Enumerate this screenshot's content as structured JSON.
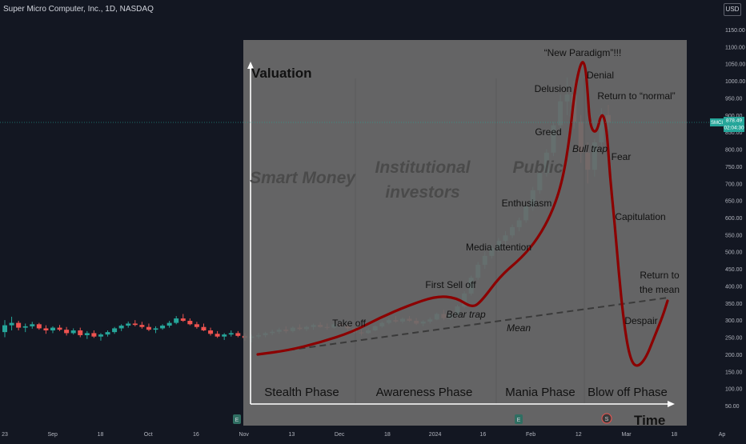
{
  "header": {
    "title": "Super Micro Computer, Inc., 1D, NASDAQ",
    "currency": "USD"
  },
  "price_tag": {
    "symbol": "SMCI",
    "price": "878.49",
    "timer": "02:04:30"
  },
  "chart_data": {
    "type": "candlestick",
    "x_ticks": [
      "23",
      "Sep",
      "18",
      "Oct",
      "16",
      "Nov",
      "13",
      "Dec",
      "18",
      "2024",
      "16",
      "Feb",
      "12",
      "Mar",
      "18",
      "Ap"
    ],
    "y_ticks": [
      1150,
      1100,
      1050,
      1000,
      950,
      900,
      850,
      800,
      750,
      700,
      650,
      600,
      550,
      500,
      450,
      400,
      350,
      300,
      250,
      200,
      150,
      100,
      50
    ],
    "ylim": [
      50,
      1150
    ],
    "last_price": 878.49,
    "candles": [
      [
        265,
        300,
        250,
        285
      ],
      [
        285,
        310,
        270,
        292
      ],
      [
        292,
        298,
        270,
        278
      ],
      [
        278,
        290,
        265,
        282
      ],
      [
        282,
        295,
        275,
        288
      ],
      [
        288,
        292,
        272,
        276
      ],
      [
        276,
        285,
        260,
        270
      ],
      [
        270,
        282,
        262,
        278
      ],
      [
        278,
        286,
        268,
        272
      ],
      [
        272,
        280,
        255,
        262
      ],
      [
        262,
        276,
        258,
        270
      ],
      [
        270,
        278,
        250,
        256
      ],
      [
        256,
        268,
        245,
        262
      ],
      [
        262,
        270,
        248,
        252
      ],
      [
        252,
        262,
        240,
        258
      ],
      [
        258,
        270,
        252,
        265
      ],
      [
        265,
        280,
        260,
        276
      ],
      [
        276,
        288,
        268,
        284
      ],
      [
        284,
        296,
        278,
        290
      ],
      [
        290,
        300,
        282,
        286
      ],
      [
        286,
        295,
        275,
        280
      ],
      [
        280,
        290,
        268,
        272
      ],
      [
        272,
        282,
        262,
        276
      ],
      [
        276,
        288,
        272,
        284
      ],
      [
        284,
        298,
        278,
        292
      ],
      [
        292,
        312,
        288,
        305
      ],
      [
        305,
        318,
        295,
        298
      ],
      [
        298,
        305,
        285,
        288
      ],
      [
        288,
        295,
        275,
        280
      ],
      [
        280,
        290,
        268,
        270
      ],
      [
        270,
        278,
        255,
        260
      ],
      [
        260,
        268,
        248,
        252
      ],
      [
        252,
        262,
        242,
        258
      ],
      [
        258,
        270,
        252,
        262
      ],
      [
        262,
        268,
        250,
        254
      ],
      [
        254,
        262,
        240,
        248
      ],
      [
        248,
        258,
        235,
        252
      ],
      [
        252,
        262,
        246,
        256
      ],
      [
        256,
        266,
        250,
        262
      ],
      [
        262,
        272,
        256,
        266
      ],
      [
        266,
        278,
        260,
        272
      ],
      [
        272,
        282,
        262,
        268
      ],
      [
        268,
        282,
        264,
        278
      ],
      [
        278,
        288,
        270,
        274
      ],
      [
        274,
        284,
        268,
        280
      ],
      [
        280,
        290,
        272,
        286
      ],
      [
        286,
        294,
        278,
        280
      ],
      [
        280,
        290,
        272,
        278
      ],
      [
        278,
        292,
        275,
        288
      ],
      [
        288,
        296,
        280,
        284
      ],
      [
        284,
        290,
        270,
        276
      ],
      [
        276,
        282,
        260,
        264
      ],
      [
        264,
        272,
        255,
        262
      ],
      [
        262,
        275,
        260,
        270
      ],
      [
        270,
        285,
        268,
        282
      ],
      [
        282,
        296,
        278,
        292
      ],
      [
        292,
        305,
        288,
        300
      ],
      [
        300,
        312,
        292,
        296
      ],
      [
        296,
        308,
        290,
        304
      ],
      [
        304,
        312,
        295,
        298
      ],
      [
        298,
        306,
        286,
        290
      ],
      [
        290,
        300,
        282,
        296
      ],
      [
        296,
        308,
        290,
        302
      ],
      [
        302,
        322,
        300,
        318
      ],
      [
        318,
        330,
        300,
        306
      ],
      [
        306,
        320,
        300,
        316
      ],
      [
        316,
        345,
        312,
        340
      ],
      [
        340,
        385,
        335,
        378
      ],
      [
        378,
        430,
        372,
        424
      ],
      [
        424,
        470,
        418,
        462
      ],
      [
        462,
        500,
        450,
        488
      ],
      [
        488,
        520,
        480,
        510
      ],
      [
        510,
        540,
        500,
        532
      ],
      [
        532,
        560,
        520,
        548
      ],
      [
        548,
        580,
        540,
        572
      ],
      [
        572,
        600,
        560,
        592
      ],
      [
        592,
        640,
        585,
        632
      ],
      [
        632,
        690,
        620,
        680
      ],
      [
        680,
        740,
        670,
        730
      ],
      [
        730,
        800,
        720,
        790
      ],
      [
        790,
        880,
        780,
        870
      ],
      [
        870,
        960,
        860,
        940
      ],
      [
        940,
        1010,
        900,
        960
      ],
      [
        960,
        1000,
        860,
        880
      ],
      [
        880,
        900,
        760,
        790
      ],
      [
        790,
        820,
        700,
        740
      ],
      [
        740,
        830,
        720,
        820
      ],
      [
        820,
        920,
        810,
        900
      ],
      [
        900,
        930,
        860,
        878
      ]
    ]
  },
  "overlay": {
    "y_label": "Valuation",
    "x_label": "Time",
    "phases": [
      "Stealth Phase",
      "Awareness Phase",
      "Mania Phase",
      "Blow off Phase"
    ],
    "groups": [
      "Smart Money",
      "Institutional",
      "investors",
      "Public"
    ],
    "annotations": [
      "Take off",
      "First Sell off",
      "Bear trap",
      "Mean",
      "Media attention",
      "Enthusiasm",
      "Greed",
      "Delusion",
      "“New Paradigm”!!!",
      "Denial",
      "Return to “normal”",
      "Bull trap",
      "Fear",
      "Capitulation",
      "Despair",
      "Return to",
      "the mean"
    ]
  },
  "colors": {
    "up": "#26a69a",
    "down": "#ef5350",
    "curve": "#8b0000",
    "panel": "#6b6b6b",
    "background": "#131722"
  }
}
